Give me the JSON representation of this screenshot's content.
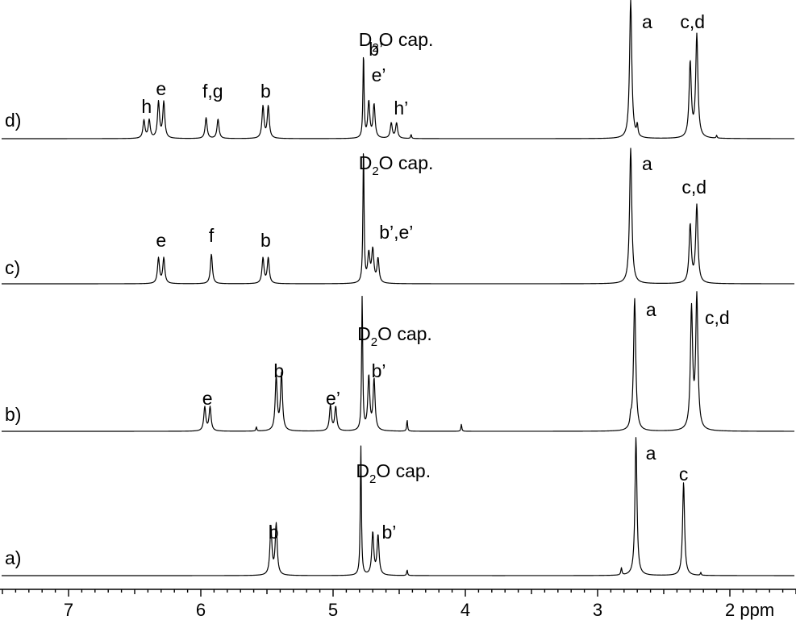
{
  "chart_data": {
    "type": "line",
    "xlabel": "",
    "xunit": "ppm",
    "xlim": [
      7.5,
      1.5
    ],
    "x_reversed": true,
    "x_ticks": [
      7,
      6,
      5,
      4,
      3,
      2
    ],
    "x_tick_labels": [
      "7",
      "6",
      "5",
      "4",
      "3",
      "2 ppm"
    ],
    "grid": false,
    "legend": "none",
    "spectra": [
      {
        "label": "a)",
        "peaks": [
          {
            "ppm": 5.47,
            "height": 0.34,
            "width": 0.009
          },
          {
            "ppm": 5.43,
            "height": 0.36,
            "width": 0.009
          },
          {
            "ppm": 4.79,
            "height": 0.92,
            "width": 0.005
          },
          {
            "ppm": 4.7,
            "height": 0.3,
            "width": 0.009
          },
          {
            "ppm": 4.66,
            "height": 0.28,
            "width": 0.009
          },
          {
            "ppm": 4.44,
            "height": 0.04,
            "width": 0.004
          },
          {
            "ppm": 2.82,
            "height": 0.05,
            "width": 0.005
          },
          {
            "ppm": 2.71,
            "height": 0.98,
            "width": 0.009
          },
          {
            "ppm": 2.35,
            "height": 0.66,
            "width": 0.009
          },
          {
            "ppm": 2.22,
            "height": 0.02,
            "width": 0.004
          }
        ],
        "annotations": [
          {
            "text": "D",
            "sub": "2",
            "rest": "O cap.",
            "ppm": 4.79
          },
          {
            "text": "b",
            "ppm": 5.45
          },
          {
            "text": "b’",
            "ppm": 4.68
          },
          {
            "text": "a",
            "ppm": 2.71
          },
          {
            "text": "c",
            "ppm": 2.35
          }
        ]
      },
      {
        "label": "b)",
        "peaks": [
          {
            "ppm": 5.97,
            "height": 0.17,
            "width": 0.009
          },
          {
            "ppm": 5.93,
            "height": 0.17,
            "width": 0.009
          },
          {
            "ppm": 5.58,
            "height": 0.03,
            "width": 0.004
          },
          {
            "ppm": 5.43,
            "height": 0.38,
            "width": 0.009
          },
          {
            "ppm": 5.39,
            "height": 0.4,
            "width": 0.009
          },
          {
            "ppm": 5.02,
            "height": 0.18,
            "width": 0.009
          },
          {
            "ppm": 4.98,
            "height": 0.17,
            "width": 0.009
          },
          {
            "ppm": 4.78,
            "height": 0.95,
            "width": 0.005
          },
          {
            "ppm": 4.73,
            "height": 0.38,
            "width": 0.009
          },
          {
            "ppm": 4.69,
            "height": 0.36,
            "width": 0.009
          },
          {
            "ppm": 4.44,
            "height": 0.08,
            "width": 0.004
          },
          {
            "ppm": 4.03,
            "height": 0.05,
            "width": 0.004
          },
          {
            "ppm": 2.75,
            "height": 0.06,
            "width": 0.006
          },
          {
            "ppm": 2.72,
            "height": 0.94,
            "width": 0.01
          },
          {
            "ppm": 2.29,
            "height": 0.85,
            "width": 0.01
          },
          {
            "ppm": 2.25,
            "height": 0.94,
            "width": 0.01
          }
        ],
        "annotations": [
          {
            "text": "D",
            "sub": "2",
            "rest": "O cap.",
            "ppm": 4.78
          },
          {
            "text": "e",
            "ppm": 5.95
          },
          {
            "text": "b",
            "ppm": 5.41
          },
          {
            "text": "e’",
            "ppm": 5.0
          },
          {
            "text": "b’",
            "ppm": 4.71
          },
          {
            "text": "a",
            "ppm": 2.72
          },
          {
            "text": "c,d",
            "ppm": 2.25
          }
        ]
      },
      {
        "label": "c)",
        "peaks": [
          {
            "ppm": 6.32,
            "height": 0.18,
            "width": 0.009
          },
          {
            "ppm": 6.28,
            "height": 0.18,
            "width": 0.009
          },
          {
            "ppm": 5.92,
            "height": 0.21,
            "width": 0.009
          },
          {
            "ppm": 5.53,
            "height": 0.18,
            "width": 0.009
          },
          {
            "ppm": 5.49,
            "height": 0.18,
            "width": 0.009
          },
          {
            "ppm": 4.77,
            "height": 0.97,
            "width": 0.005
          },
          {
            "ppm": 4.73,
            "height": 0.2,
            "width": 0.01
          },
          {
            "ppm": 4.7,
            "height": 0.23,
            "width": 0.01
          },
          {
            "ppm": 4.66,
            "height": 0.17,
            "width": 0.009
          },
          {
            "ppm": 2.75,
            "height": 0.96,
            "width": 0.01
          },
          {
            "ppm": 2.3,
            "height": 0.41,
            "width": 0.01
          },
          {
            "ppm": 2.25,
            "height": 0.55,
            "width": 0.01
          }
        ],
        "annotations": [
          {
            "text": "D",
            "sub": "2",
            "rest": "O cap.",
            "ppm": 4.77
          },
          {
            "text": "e",
            "ppm": 6.3
          },
          {
            "text": "f",
            "ppm": 5.92
          },
          {
            "text": "b",
            "ppm": 5.51
          },
          {
            "text": "b’,e’",
            "ppm": 4.7
          },
          {
            "text": "a",
            "ppm": 2.75
          },
          {
            "text": "c,d",
            "ppm": 2.27
          }
        ]
      },
      {
        "label": "d)",
        "peaks": [
          {
            "ppm": 6.43,
            "height": 0.13,
            "width": 0.009
          },
          {
            "ppm": 6.39,
            "height": 0.13,
            "width": 0.009
          },
          {
            "ppm": 6.32,
            "height": 0.26,
            "width": 0.009
          },
          {
            "ppm": 6.28,
            "height": 0.26,
            "width": 0.009
          },
          {
            "ppm": 5.96,
            "height": 0.15,
            "width": 0.009
          },
          {
            "ppm": 5.87,
            "height": 0.14,
            "width": 0.009
          },
          {
            "ppm": 5.53,
            "height": 0.23,
            "width": 0.009
          },
          {
            "ppm": 5.49,
            "height": 0.23,
            "width": 0.009
          },
          {
            "ppm": 4.77,
            "height": 0.61,
            "width": 0.005
          },
          {
            "ppm": 4.73,
            "height": 0.26,
            "width": 0.009
          },
          {
            "ppm": 4.69,
            "height": 0.24,
            "width": 0.009
          },
          {
            "ppm": 4.56,
            "height": 0.11,
            "width": 0.009
          },
          {
            "ppm": 4.52,
            "height": 0.11,
            "width": 0.009
          },
          {
            "ppm": 4.41,
            "height": 0.03,
            "width": 0.004
          },
          {
            "ppm": 2.75,
            "height": 1.0,
            "width": 0.01
          },
          {
            "ppm": 2.7,
            "height": 0.08,
            "width": 0.006
          },
          {
            "ppm": 2.3,
            "height": 0.54,
            "width": 0.01
          },
          {
            "ppm": 2.25,
            "height": 0.74,
            "width": 0.01
          },
          {
            "ppm": 2.1,
            "height": 0.02,
            "width": 0.004
          }
        ],
        "annotations": [
          {
            "text": "D",
            "sub": "2",
            "rest": "O cap.",
            "ppm": 4.77
          },
          {
            "text": "h",
            "ppm": 6.41
          },
          {
            "text": "e",
            "ppm": 6.3
          },
          {
            "text": "f,g",
            "ppm": 5.91
          },
          {
            "text": "b",
            "ppm": 5.51
          },
          {
            "text": "b’",
            "ppm": 4.73
          },
          {
            "text": "e’",
            "ppm": 4.71
          },
          {
            "text": "h’",
            "ppm": 4.54
          },
          {
            "text": "a",
            "ppm": 2.75
          },
          {
            "text": "c,d",
            "ppm": 2.27
          }
        ]
      }
    ]
  }
}
